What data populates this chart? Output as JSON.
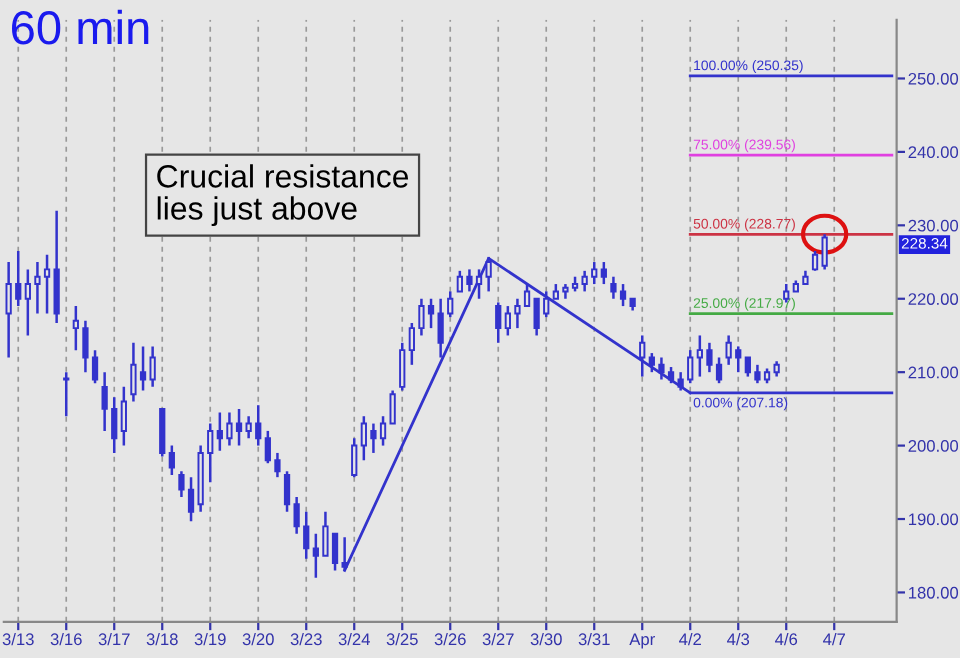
{
  "chart_data": {
    "type": "candlestick",
    "title": "60 min",
    "annotations": [
      "Crucial resistance\nlies just above",
      "228.34"
    ],
    "color": "#3333cc",
    "categories": [
      null,
      "3/13",
      null,
      null,
      null,
      null,
      "3/16",
      null,
      null,
      null,
      null,
      "3/17",
      null,
      null,
      null,
      null,
      "3/18",
      null,
      null,
      null,
      null,
      "3/19",
      null,
      null,
      null,
      null,
      "3/20",
      null,
      null,
      null,
      null,
      "3/23",
      null,
      null,
      null,
      null,
      "3/24",
      null,
      null,
      null,
      null,
      "3/25",
      null,
      null,
      null,
      null,
      "3/26",
      null,
      null,
      null,
      null,
      "3/27",
      null,
      null,
      null,
      null,
      "3/30",
      null,
      null,
      null,
      null,
      "3/31",
      null,
      null,
      null,
      null,
      "Apr",
      null,
      null,
      null,
      null,
      "4/2",
      null,
      null,
      null,
      null,
      "4/3",
      null,
      null,
      null,
      null,
      "4/6",
      null,
      null,
      null,
      null,
      "4/7",
      null,
      null,
      null,
      null,
      null,
      null
    ],
    "ohlc": [
      [
        218,
        225,
        212,
        222
      ],
      [
        222,
        226.5,
        219,
        220
      ],
      [
        220,
        224,
        215,
        222
      ],
      [
        222,
        225,
        218,
        223
      ],
      [
        223,
        226,
        218,
        224
      ],
      [
        224,
        232,
        216.7,
        218
      ],
      [
        209,
        210,
        204,
        209
      ],
      [
        216,
        219,
        213,
        217
      ],
      [
        216,
        217,
        210,
        212
      ],
      [
        212,
        213,
        208.5,
        209
      ],
      [
        208,
        210,
        202,
        205
      ],
      [
        205,
        206.6,
        199,
        201
      ],
      [
        202,
        208,
        200,
        206
      ],
      [
        207,
        214,
        206,
        211
      ],
      [
        210,
        213.5,
        207.5,
        209
      ],
      [
        209,
        213.5,
        208,
        212
      ],
      [
        205,
        205,
        198.5,
        199
      ],
      [
        199,
        200,
        196,
        197
      ],
      [
        196,
        196.5,
        193,
        194
      ],
      [
        194,
        195.7,
        189.7,
        191
      ],
      [
        192,
        200,
        191,
        199
      ],
      [
        199,
        203,
        195,
        202
      ],
      [
        202,
        204.5,
        199.3,
        201
      ],
      [
        201,
        204.5,
        200,
        203
      ],
      [
        203,
        205,
        200,
        202
      ],
      [
        202,
        204,
        201,
        203
      ],
      [
        203,
        205.5,
        200,
        201
      ],
      [
        201,
        202,
        197.6,
        198
      ],
      [
        198,
        199,
        195.7,
        196.5
      ],
      [
        196,
        196.5,
        191,
        192
      ],
      [
        192,
        193,
        188,
        189
      ],
      [
        189,
        191,
        184.6,
        186
      ],
      [
        186,
        188,
        182,
        185
      ],
      [
        185,
        191,
        185,
        189
      ],
      [
        188,
        188,
        183,
        184
      ],
      [
        184,
        187.5,
        183,
        183.5
      ],
      [
        196,
        201,
        195.7,
        200
      ],
      [
        200,
        204,
        198,
        203
      ],
      [
        202,
        203,
        199,
        201
      ],
      [
        201,
        204,
        200,
        203
      ],
      [
        203,
        207.5,
        203,
        207
      ],
      [
        208,
        214,
        207.5,
        213
      ],
      [
        213,
        216.7,
        211,
        216
      ],
      [
        216,
        220,
        215,
        219
      ],
      [
        219,
        220,
        216,
        218
      ],
      [
        218,
        220,
        212,
        214
      ],
      [
        218,
        221,
        217.5,
        220
      ],
      [
        221,
        223.8,
        221,
        223
      ],
      [
        223,
        224,
        221,
        222
      ],
      [
        222,
        224,
        220,
        223
      ],
      [
        223,
        225.7,
        221,
        225
      ],
      [
        219,
        219.5,
        214,
        216
      ],
      [
        216,
        219,
        215,
        218
      ],
      [
        218,
        220,
        216,
        219
      ],
      [
        219,
        222,
        219,
        221
      ],
      [
        220,
        220,
        215,
        216
      ],
      [
        218,
        221,
        217.5,
        220
      ],
      [
        220,
        222,
        220,
        221
      ],
      [
        221,
        222,
        220,
        221.5
      ],
      [
        221.5,
        223,
        221,
        222
      ],
      [
        222,
        223.8,
        221,
        223
      ],
      [
        223,
        225,
        222,
        224
      ],
      [
        224,
        225,
        222,
        223
      ],
      [
        222,
        223,
        220,
        221
      ],
      [
        221,
        222,
        219,
        220
      ],
      [
        220,
        220,
        218.4,
        219
      ],
      [
        212,
        215,
        209.4,
        214
      ],
      [
        212,
        212.6,
        210,
        211
      ],
      [
        211,
        212,
        209,
        210
      ],
      [
        210,
        210.7,
        208.5,
        209
      ],
      [
        209,
        210,
        207.5,
        208
      ],
      [
        209,
        213,
        208.5,
        212
      ],
      [
        212,
        215,
        209.4,
        213
      ],
      [
        213,
        214,
        210,
        211
      ],
      [
        211,
        212,
        208.5,
        209
      ],
      [
        212,
        215,
        211,
        214
      ],
      [
        213,
        213.5,
        210,
        212
      ],
      [
        212,
        212,
        209.4,
        210
      ],
      [
        210,
        211,
        208.5,
        209
      ],
      [
        209,
        210.5,
        208.5,
        210
      ],
      [
        210,
        211.5,
        209.4,
        211
      ],
      [
        220,
        222,
        219.5,
        221
      ],
      [
        221,
        222.5,
        221,
        222
      ],
      [
        222,
        223.8,
        222,
        223
      ],
      [
        224,
        226.5,
        223.8,
        226
      ],
      [
        224.5,
        228.8,
        224,
        228.34
      ],
      null,
      null,
      null,
      null,
      null,
      null,
      null
    ],
    "series": [
      {
        "type": "line",
        "color": "#3333cc",
        "values": [
          null,
          null,
          null,
          null,
          null,
          null,
          null,
          null,
          null,
          null,
          null,
          null,
          null,
          null,
          null,
          null,
          null,
          null,
          null,
          null,
          null,
          null,
          null,
          null,
          null,
          null,
          null,
          null,
          null,
          null,
          null,
          null,
          null,
          null,
          null,
          183,
          null,
          null,
          null,
          null,
          null,
          null,
          null,
          null,
          null,
          null,
          null,
          null,
          null,
          null,
          225.5,
          null,
          null,
          null,
          null,
          null,
          null,
          null,
          null,
          null,
          null,
          null,
          null,
          null,
          null,
          null,
          null,
          null,
          null,
          null,
          null,
          207.18,
          null,
          null,
          null,
          null,
          null,
          null,
          null,
          null,
          null,
          null,
          null,
          null,
          null,
          null,
          null,
          null,
          null,
          null,
          null,
          null,
          null
        ]
      },
      {
        "type": "line",
        "name": "100.00% (250.35)",
        "color": "#3333cc",
        "values": [
          null,
          null,
          null,
          null,
          null,
          null,
          null,
          null,
          null,
          null,
          null,
          null,
          null,
          null,
          null,
          null,
          null,
          null,
          null,
          null,
          null,
          null,
          null,
          null,
          null,
          null,
          null,
          null,
          null,
          null,
          null,
          null,
          null,
          null,
          null,
          null,
          null,
          null,
          null,
          null,
          null,
          null,
          null,
          null,
          null,
          null,
          null,
          null,
          null,
          null,
          null,
          null,
          null,
          null,
          null,
          null,
          null,
          null,
          null,
          null,
          null,
          null,
          null,
          null,
          null,
          null,
          null,
          null,
          null,
          null,
          null,
          250.35,
          null,
          null,
          null,
          null,
          null,
          null,
          null,
          null,
          null,
          null,
          null,
          null,
          null,
          null,
          null,
          null,
          null,
          null,
          null,
          null,
          250.35
        ]
      },
      {
        "type": "line",
        "name": "75.00% (239.56)",
        "color": "#e040e0",
        "values": [
          null,
          null,
          null,
          null,
          null,
          null,
          null,
          null,
          null,
          null,
          null,
          null,
          null,
          null,
          null,
          null,
          null,
          null,
          null,
          null,
          null,
          null,
          null,
          null,
          null,
          null,
          null,
          null,
          null,
          null,
          null,
          null,
          null,
          null,
          null,
          null,
          null,
          null,
          null,
          null,
          null,
          null,
          null,
          null,
          null,
          null,
          null,
          null,
          null,
          null,
          null,
          null,
          null,
          null,
          null,
          null,
          null,
          null,
          null,
          null,
          null,
          null,
          null,
          null,
          null,
          null,
          null,
          null,
          null,
          null,
          null,
          239.56,
          null,
          null,
          null,
          null,
          null,
          null,
          null,
          null,
          null,
          null,
          null,
          null,
          null,
          null,
          null,
          null,
          null,
          null,
          null,
          null,
          239.56
        ]
      },
      {
        "type": "line",
        "name": "50.00% (228.77)",
        "color": "#cc3344",
        "values": [
          null,
          null,
          null,
          null,
          null,
          null,
          null,
          null,
          null,
          null,
          null,
          null,
          null,
          null,
          null,
          null,
          null,
          null,
          null,
          null,
          null,
          null,
          null,
          null,
          null,
          null,
          null,
          null,
          null,
          null,
          null,
          null,
          null,
          null,
          null,
          null,
          null,
          null,
          null,
          null,
          null,
          null,
          null,
          null,
          null,
          null,
          null,
          null,
          null,
          null,
          null,
          null,
          null,
          null,
          null,
          null,
          null,
          null,
          null,
          null,
          null,
          null,
          null,
          null,
          null,
          null,
          null,
          null,
          null,
          null,
          null,
          228.77,
          null,
          null,
          null,
          null,
          null,
          null,
          null,
          null,
          null,
          null,
          null,
          null,
          null,
          null,
          null,
          null,
          null,
          null,
          null,
          null,
          228.77
        ]
      },
      {
        "type": "line",
        "name": "25.00% (217.97)",
        "color": "#44aa44",
        "values": [
          null,
          null,
          null,
          null,
          null,
          null,
          null,
          null,
          null,
          null,
          null,
          null,
          null,
          null,
          null,
          null,
          null,
          null,
          null,
          null,
          null,
          null,
          null,
          null,
          null,
          null,
          null,
          null,
          null,
          null,
          null,
          null,
          null,
          null,
          null,
          null,
          null,
          null,
          null,
          null,
          null,
          null,
          null,
          null,
          null,
          null,
          null,
          null,
          null,
          null,
          null,
          null,
          null,
          null,
          null,
          null,
          null,
          null,
          null,
          null,
          null,
          null,
          null,
          null,
          null,
          null,
          null,
          null,
          null,
          null,
          null,
          217.97,
          null,
          null,
          null,
          null,
          null,
          null,
          null,
          null,
          null,
          null,
          null,
          null,
          null,
          null,
          null,
          null,
          null,
          null,
          null,
          null,
          217.97
        ]
      },
      {
        "type": "line",
        "name": "0.00% (207.18)",
        "color": "#3333cc",
        "values": [
          null,
          null,
          null,
          null,
          null,
          null,
          null,
          null,
          null,
          null,
          null,
          null,
          null,
          null,
          null,
          null,
          null,
          null,
          null,
          null,
          null,
          null,
          null,
          null,
          null,
          null,
          null,
          null,
          null,
          null,
          null,
          null,
          null,
          null,
          null,
          null,
          null,
          null,
          null,
          null,
          null,
          null,
          null,
          null,
          null,
          null,
          null,
          null,
          null,
          null,
          null,
          null,
          null,
          null,
          null,
          null,
          null,
          null,
          null,
          null,
          null,
          null,
          null,
          null,
          null,
          null,
          null,
          null,
          null,
          null,
          null,
          207.18,
          null,
          null,
          null,
          null,
          null,
          null,
          null,
          null,
          null,
          null,
          null,
          null,
          null,
          null,
          null,
          null,
          null,
          null,
          null,
          null,
          207.18
        ]
      }
    ],
    "ylim": [
      176,
      258
    ],
    "yticks": [
      {
        "value": 180,
        "label": "180.00"
      },
      {
        "value": 190,
        "label": "190.00"
      },
      {
        "value": 200,
        "label": "200.00"
      },
      {
        "value": 210,
        "label": "210.00"
      },
      {
        "value": 220,
        "label": "220.00"
      },
      {
        "value": 230,
        "label": "230.00"
      },
      {
        "value": 240,
        "label": "240.00"
      },
      {
        "value": 250,
        "label": "250.00"
      }
    ],
    "grid": "x"
  }
}
